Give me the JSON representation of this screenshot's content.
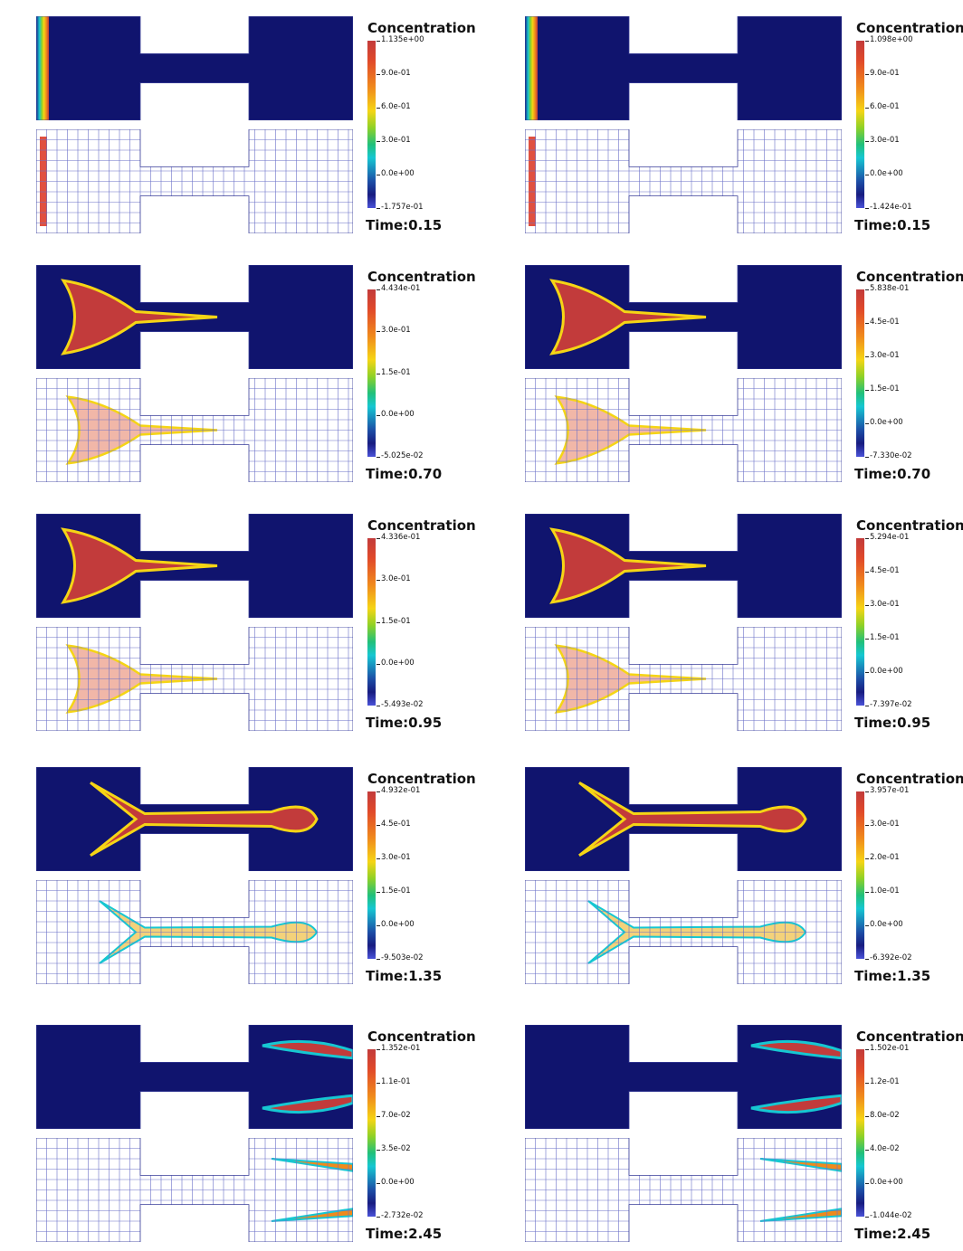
{
  "legend_title": "Concentration",
  "panels": [
    {
      "col": "left",
      "row": 0,
      "ticks": [
        "1.135e+00",
        "9.0e-01",
        "6.0e-01",
        "3.0e-01",
        "0.0e+00",
        "-1.757e-01"
      ],
      "time": "Time:0.15"
    },
    {
      "col": "right",
      "row": 0,
      "ticks": [
        "1.098e+00",
        "9.0e-01",
        "6.0e-01",
        "3.0e-01",
        "0.0e+00",
        "-1.424e-01"
      ],
      "time": "Time:0.15"
    },
    {
      "col": "left",
      "row": 1,
      "ticks": [
        "4.434e-01",
        "3.0e-01",
        "1.5e-01",
        "0.0e+00",
        "-5.025e-02"
      ],
      "time": "Time:0.70"
    },
    {
      "col": "right",
      "row": 1,
      "ticks": [
        "5.838e-01",
        "4.5e-01",
        "3.0e-01",
        "1.5e-01",
        "0.0e+00",
        "-7.330e-02"
      ],
      "time": "Time:0.70"
    },
    {
      "col": "left",
      "row": 2,
      "ticks": [
        "4.336e-01",
        "3.0e-01",
        "1.5e-01",
        "0.0e+00",
        "-5.493e-02"
      ],
      "time": "Time:0.95"
    },
    {
      "col": "right",
      "row": 2,
      "ticks": [
        "5.294e-01",
        "4.5e-01",
        "3.0e-01",
        "1.5e-01",
        "0.0e+00",
        "-7.397e-02"
      ],
      "time": "Time:0.95"
    },
    {
      "col": "left",
      "row": 3,
      "ticks": [
        "4.932e-01",
        "4.5e-01",
        "3.0e-01",
        "1.5e-01",
        "0.0e+00",
        "-9.503e-02"
      ],
      "time": "Time:1.35"
    },
    {
      "col": "right",
      "row": 3,
      "ticks": [
        "3.957e-01",
        "3.0e-01",
        "2.0e-01",
        "1.0e-01",
        "0.0e+00",
        "-6.392e-02"
      ],
      "time": "Time:1.35"
    },
    {
      "col": "left",
      "row": 4,
      "ticks": [
        "1.352e-01",
        "1.1e-01",
        "7.0e-02",
        "3.5e-02",
        "0.0e+00",
        "-2.732e-02"
      ],
      "time": "Time:2.45"
    },
    {
      "col": "right",
      "row": 4,
      "ticks": [
        "1.502e-01",
        "1.2e-01",
        "8.0e-02",
        "4.0e-02",
        "0.0e+00",
        "-1.044e-02"
      ],
      "time": "Time:2.45"
    }
  ],
  "colors": {
    "domain_bg": "#10146e",
    "mesh_line": "#6a70c8",
    "hot": "#c23b3b"
  }
}
